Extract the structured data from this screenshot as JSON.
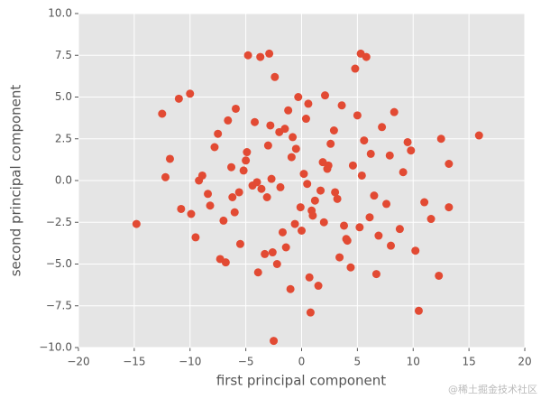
{
  "chart_data": {
    "type": "scatter",
    "x_label": "first principal component",
    "y_label": "second principal component",
    "watermark": "@稀土掘金技术社区",
    "color": "#E24A33",
    "grid": true,
    "xlim": [
      -20,
      20
    ],
    "ylim": [
      -10,
      10
    ],
    "xticks": [
      {
        "value": -20,
        "label": "−20"
      },
      {
        "value": -15,
        "label": "−15"
      },
      {
        "value": -10,
        "label": "−10"
      },
      {
        "value": -5,
        "label": "−5"
      },
      0,
      5,
      10,
      15,
      20
    ],
    "yticks": [
      {
        "value": -10,
        "label": "−10.0"
      },
      {
        "value": -7.5,
        "label": "−7.5"
      },
      {
        "value": -5,
        "label": "−5.0"
      },
      {
        "value": -2.5,
        "label": "−2.5"
      },
      {
        "value": 0,
        "label": "0.0"
      },
      2.5,
      {
        "value": 5,
        "label": "5.0"
      },
      7.5,
      {
        "value": 10,
        "label": "10.0"
      }
    ],
    "x": [
      -14.8,
      15.9,
      -2.5,
      10.5,
      0.8,
      -12.5,
      12.3,
      -4.8,
      -3.7,
      -2.9,
      5.3,
      5.8,
      13.2,
      13.2,
      -10.0,
      -11.0,
      -7.8,
      -8.2,
      -5.5,
      -1.2,
      2.1,
      3.4,
      -6.3,
      7.2,
      8.8,
      -9.5,
      9.8,
      -3.1,
      0.2,
      1.5,
      -0.8,
      4.6,
      -4.2,
      6.1,
      -2.2,
      3.0,
      -7.0,
      7.9,
      -5.9,
      -1.7,
      2.6,
      0.9,
      -0.3,
      1.9,
      -2.7,
      4.1,
      -3.6,
      5.0,
      -6.8,
      6.7,
      -8.9,
      8.3,
      -9.9,
      10.2,
      -11.8,
      11.6,
      -1.0,
      0.5,
      2.9,
      -4.9,
      3.8,
      -3.3,
      -0.5,
      1.2,
      -2.0,
      6.5,
      -6.0,
      9.1,
      -7.5,
      4.4,
      -4.4,
      0.0,
      2.3,
      -1.4,
      5.6,
      -5.2,
      7.6,
      -8.4,
      3.2,
      -2.8,
      1.0,
      -0.9,
      4.8,
      -3.9,
      -10.8,
      11.0,
      -12.2,
      12.5,
      -6.6,
      6.9,
      -1.9,
      2.0,
      0.4,
      -0.1,
      3.6,
      -3.0,
      8.0,
      -7.3,
      -5.0,
      5.2,
      9.5,
      -9.2,
      1.7,
      -2.4,
      0.7,
      -1.5,
      4.0,
      -4.0,
      6.2,
      -6.2,
      -0.6,
      0.6,
      2.4,
      -2.6,
      5.4,
      -5.6
    ],
    "y": [
      -2.6,
      2.7,
      -9.6,
      -7.8,
      -7.9,
      4.0,
      -5.7,
      7.5,
      7.4,
      7.6,
      7.6,
      7.4,
      1.0,
      -1.6,
      5.2,
      4.9,
      2.0,
      -1.5,
      -3.8,
      4.2,
      5.1,
      -4.6,
      0.8,
      3.2,
      -2.9,
      -3.4,
      1.8,
      -1.0,
      0.4,
      -6.3,
      2.6,
      0.9,
      3.5,
      -2.2,
      -5.0,
      -0.7,
      -2.4,
      1.5,
      4.3,
      -3.1,
      2.2,
      -1.8,
      5.0,
      1.1,
      0.1,
      -3.6,
      -0.5,
      3.9,
      -4.9,
      -5.6,
      0.3,
      4.1,
      -2.0,
      -4.2,
      1.3,
      -2.3,
      -6.5,
      -0.2,
      3.0,
      1.7,
      -2.7,
      -4.4,
      1.9,
      -1.2,
      2.9,
      -0.9,
      -1.9,
      0.5,
      2.8,
      -5.2,
      -0.3,
      -3.0,
      0.7,
      -4.0,
      2.4,
      0.6,
      -1.4,
      -0.8,
      -1.1,
      3.3,
      -2.1,
      1.4,
      6.7,
      -5.5,
      -1.7,
      -1.3,
      0.2,
      2.5,
      3.6,
      -3.3,
      -0.4,
      -2.5,
      3.7,
      -1.6,
      4.5,
      2.1,
      -3.9,
      -4.7,
      1.2,
      -2.8,
      2.3,
      0.0,
      -0.6,
      6.2,
      -5.8,
      3.1,
      -3.5,
      -0.1,
      1.6,
      -1.0,
      -2.6,
      4.6,
      0.9,
      -4.3,
      0.3,
      -0.7
    ]
  }
}
